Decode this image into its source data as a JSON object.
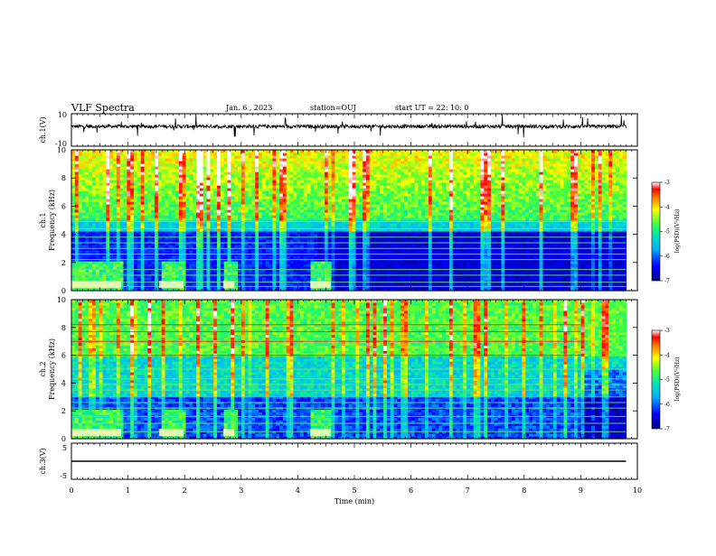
{
  "header": {
    "title": "VLF Spectra",
    "date": "Jan. 6 , 2023",
    "station": "station=OUJ",
    "start_ut": "start UT =  22: 10: 0"
  },
  "chart_data": [
    {
      "id": "ch1-waveform",
      "type": "line",
      "ylabel": "ch.1(V)",
      "ylim": [
        -10,
        10
      ],
      "yticks": [
        "10",
        "-10"
      ],
      "xlim": [
        0,
        10
      ],
      "line_color": "#000000"
    },
    {
      "id": "ch1-spectrogram",
      "type": "heatmap",
      "ylabel_channel": "ch.1",
      "ylabel": "Frequency (kHz)",
      "ylim": [
        0,
        10
      ],
      "yticks": [
        "0",
        "2",
        "4",
        "6",
        "8",
        "10"
      ],
      "xlim": [
        0,
        10
      ],
      "colorbar": {
        "label": "log(PSD)(V²/Hz)",
        "range": [
          -7,
          -3
        ],
        "ticks": [
          "-3",
          "-4",
          "-5",
          "-6",
          "-7"
        ]
      },
      "data_extent_min": 9.8,
      "bands_khz": [
        0.3,
        0.6,
        1.1,
        1.5,
        2.2,
        2.6,
        3.0,
        3.4,
        3.8,
        4.4,
        4.9
      ],
      "burst_intervals_min": [
        [
          0.0,
          0.88
        ],
        [
          1.55,
          1.98
        ],
        [
          2.68,
          2.88
        ],
        [
          4.22,
          4.58
        ]
      ]
    },
    {
      "id": "ch2-spectrogram",
      "type": "heatmap",
      "ylabel_channel": "ch.2",
      "ylabel": "Frequency (kHz)",
      "ylim": [
        0,
        10
      ],
      "yticks": [
        "0",
        "2",
        "4",
        "6",
        "8",
        "10"
      ],
      "xlim": [
        0,
        10
      ],
      "colorbar": {
        "label": "log(PSD)(V²/Hz)",
        "range": [
          -7,
          -3
        ],
        "ticks": [
          "-3",
          "-4",
          "-5",
          "-6",
          "-7"
        ]
      },
      "data_extent_min": 9.8,
      "bands_khz": [
        0.5,
        1.1,
        1.6,
        2.2,
        2.6,
        3.0,
        3.5,
        3.9,
        4.3,
        5.0,
        6.0,
        7.0,
        7.7,
        8.2
      ],
      "burst_intervals_min": [
        [
          0.0,
          0.88
        ],
        [
          1.55,
          1.98
        ],
        [
          2.68,
          2.88
        ],
        [
          4.22,
          4.58
        ]
      ],
      "red_line_end_min": 9.0
    },
    {
      "id": "ch3-waveform",
      "type": "line",
      "ylabel": "ch.3(V)",
      "ylim": [
        -5,
        5
      ],
      "yticks": [
        "5",
        "-5"
      ],
      "xlim": [
        0,
        10
      ],
      "xlabel": "Time (min)",
      "xticks": [
        "0",
        "1",
        "2",
        "3",
        "4",
        "5",
        "6",
        "7",
        "8",
        "9",
        "10"
      ],
      "constant_value": 0,
      "line_color": "#000000"
    }
  ]
}
